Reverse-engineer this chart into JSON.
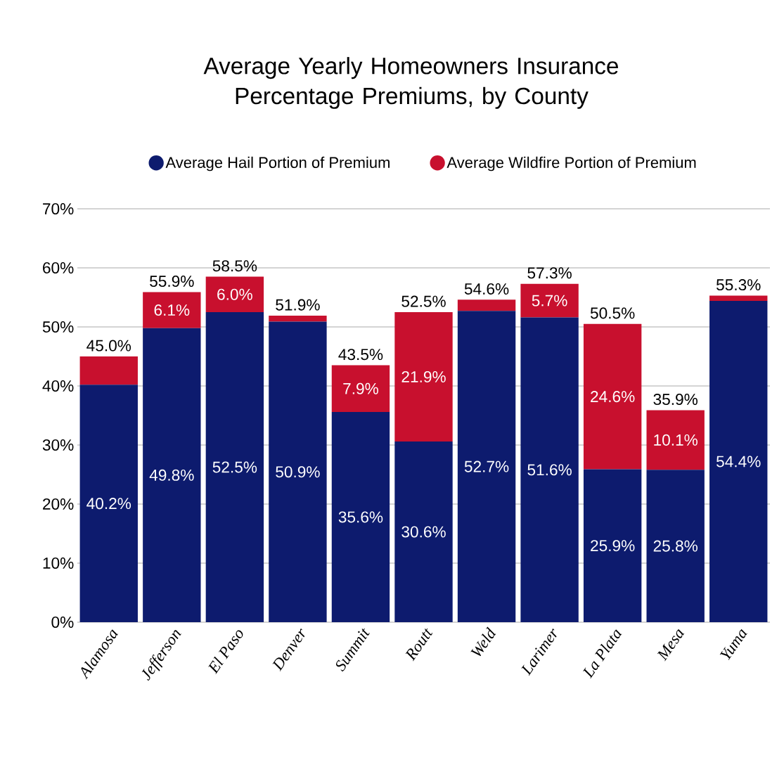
{
  "chart_data": {
    "type": "bar",
    "stacked": true,
    "title": "Average Yearly Homeowners Insurance Percentage Premiums, by County",
    "categories": [
      "Alamosa",
      "Jefferson",
      "El Paso",
      "Denver",
      "Summit",
      "Routt",
      "Weld",
      "Larimer",
      "La Plata",
      "Mesa",
      "Yuma"
    ],
    "series": [
      {
        "name": "Average Hail Portion of Premium",
        "color": "#0d1b6e",
        "values": [
          40.2,
          49.8,
          52.5,
          50.9,
          35.6,
          30.6,
          52.7,
          51.6,
          25.9,
          25.8,
          54.4
        ],
        "value_labels": [
          "40.2%",
          "49.8%",
          "52.5%",
          "50.9%",
          "35.6%",
          "30.6%",
          "52.7%",
          "51.6%",
          "25.9%",
          "25.8%",
          "54.4%"
        ]
      },
      {
        "name": "Average Wildfire Portion of Premium",
        "color": "#c8102e",
        "values": [
          4.8,
          6.1,
          6.0,
          1.0,
          7.9,
          21.9,
          1.9,
          5.7,
          24.6,
          10.1,
          0.9
        ],
        "value_labels": [
          null,
          "6.1%",
          "6.0%",
          null,
          "7.9%",
          "21.9%",
          null,
          "5.7%",
          "24.6%",
          "10.1%",
          null
        ]
      }
    ],
    "totals": [
      "45.0%",
      "55.9%",
      "58.5%",
      "51.9%",
      "43.5%",
      "52.5%",
      "54.6%",
      "57.3%",
      "50.5%",
      "35.9%",
      "55.3%"
    ],
    "ylim": [
      0,
      70
    ],
    "yticks": [
      {
        "value": 0,
        "label": "0%"
      },
      {
        "value": 10,
        "label": "10%"
      },
      {
        "value": 20,
        "label": "20%"
      },
      {
        "value": 30,
        "label": "30%"
      },
      {
        "value": 40,
        "label": "40%"
      },
      {
        "value": 50,
        "label": "50%"
      },
      {
        "value": 60,
        "label": "60%"
      },
      {
        "value": 70,
        "label": "70%"
      }
    ],
    "grid": "y",
    "legend": "top"
  }
}
